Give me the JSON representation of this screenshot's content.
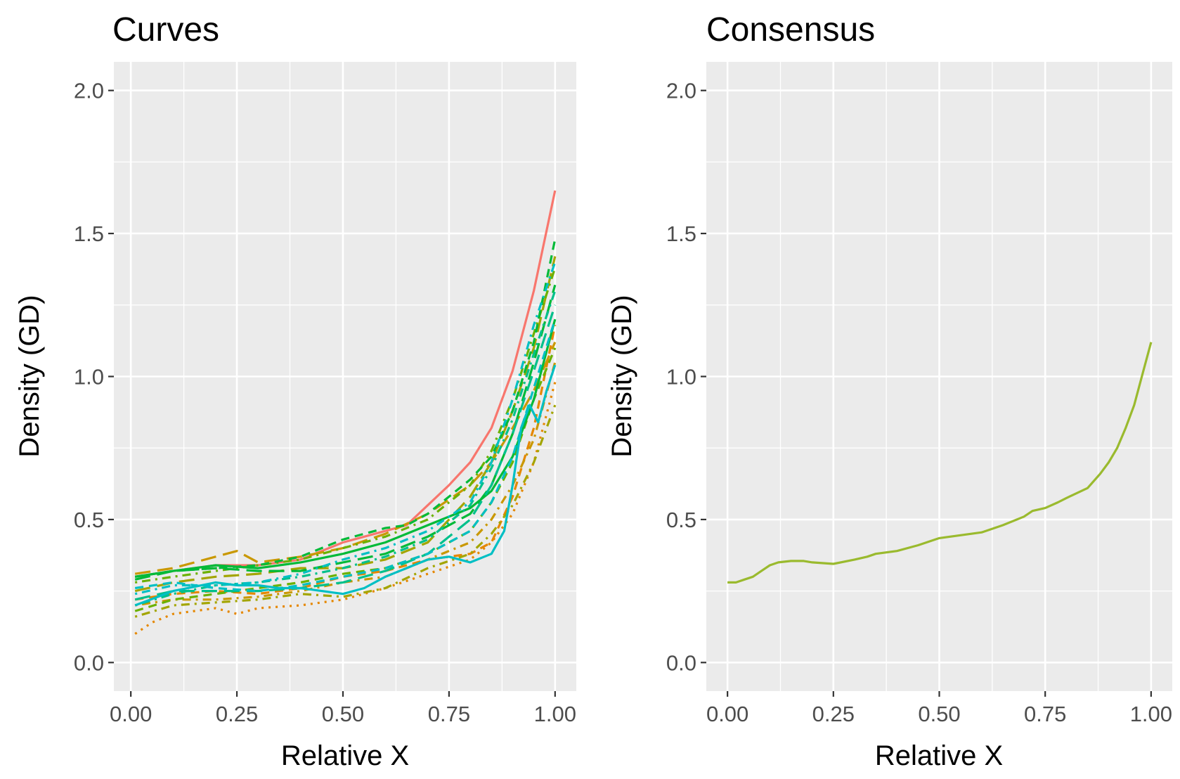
{
  "chart_data": [
    {
      "type": "line",
      "title": "Curves",
      "xlabel": "Relative X",
      "ylabel": "Density (GD)",
      "xlim": [
        -0.04,
        1.05
      ],
      "ylim": [
        -0.1,
        2.1
      ],
      "xticks": [
        0.0,
        0.25,
        0.5,
        0.75,
        1.0
      ],
      "xtick_labels": [
        "0.00",
        "0.25",
        "0.50",
        "0.75",
        "1.00"
      ],
      "yticks": [
        0.0,
        0.5,
        1.0,
        1.5,
        2.0
      ],
      "ytick_labels": [
        "0.0",
        "0.5",
        "1.0",
        "1.5",
        "2.0"
      ],
      "grid": true,
      "legend": "none",
      "colors": [
        "#f8766d",
        "#e58700",
        "#c99800",
        "#a3a500",
        "#6bb100",
        "#00ba38",
        "#00c08b",
        "#00bfc4"
      ],
      "series": [
        {
          "color": "#f8766d",
          "dash": "solid",
          "x": [
            0.01,
            0.1,
            0.2,
            0.3,
            0.4,
            0.5,
            0.6,
            0.65,
            0.7,
            0.75,
            0.8,
            0.85,
            0.9,
            0.95,
            1.0
          ],
          "y": [
            0.3,
            0.32,
            0.34,
            0.34,
            0.36,
            0.42,
            0.46,
            0.48,
            0.55,
            0.62,
            0.7,
            0.82,
            1.02,
            1.3,
            1.65
          ]
        },
        {
          "color": "#e58700",
          "dash": "dot",
          "x": [
            0.01,
            0.05,
            0.1,
            0.2,
            0.25,
            0.3,
            0.4,
            0.5,
            0.6,
            0.7,
            0.8,
            0.85,
            0.9,
            0.95,
            1.0
          ],
          "y": [
            0.1,
            0.14,
            0.17,
            0.19,
            0.17,
            0.19,
            0.2,
            0.22,
            0.26,
            0.31,
            0.36,
            0.42,
            0.52,
            0.7,
            0.98
          ]
        },
        {
          "color": "#e58700",
          "dash": "dash",
          "x": [
            0.01,
            0.1,
            0.2,
            0.3,
            0.4,
            0.5,
            0.6,
            0.7,
            0.8,
            0.85,
            0.9,
            0.95,
            1.0
          ],
          "y": [
            0.22,
            0.24,
            0.25,
            0.24,
            0.26,
            0.3,
            0.32,
            0.36,
            0.38,
            0.42,
            0.58,
            0.82,
            1.18
          ]
        },
        {
          "color": "#c99800",
          "dash": "longdash",
          "x": [
            0.01,
            0.1,
            0.2,
            0.25,
            0.3,
            0.4,
            0.5,
            0.6,
            0.7,
            0.8,
            0.85,
            0.9,
            0.95,
            1.0
          ],
          "y": [
            0.31,
            0.33,
            0.37,
            0.39,
            0.35,
            0.37,
            0.4,
            0.45,
            0.52,
            0.62,
            0.7,
            0.82,
            0.95,
            1.12
          ]
        },
        {
          "color": "#c99800",
          "dash": "dotdash",
          "x": [
            0.01,
            0.1,
            0.2,
            0.3,
            0.4,
            0.5,
            0.6,
            0.7,
            0.8,
            0.85,
            0.9,
            0.95,
            1.0
          ],
          "y": [
            0.2,
            0.22,
            0.22,
            0.23,
            0.25,
            0.28,
            0.3,
            0.36,
            0.42,
            0.5,
            0.62,
            0.78,
            1.05
          ]
        },
        {
          "color": "#a3a500",
          "dash": "dotdash",
          "x": [
            0.01,
            0.1,
            0.2,
            0.3,
            0.4,
            0.5,
            0.6,
            0.7,
            0.8,
            0.85,
            0.9,
            0.95,
            1.0
          ],
          "y": [
            0.16,
            0.2,
            0.21,
            0.22,
            0.24,
            0.23,
            0.26,
            0.33,
            0.38,
            0.45,
            0.55,
            0.7,
            0.9
          ]
        },
        {
          "color": "#a3a500",
          "dash": "longdash",
          "x": [
            0.01,
            0.1,
            0.2,
            0.3,
            0.4,
            0.5,
            0.6,
            0.7,
            0.8,
            0.85,
            0.9,
            0.95,
            1.0
          ],
          "y": [
            0.25,
            0.28,
            0.3,
            0.31,
            0.33,
            0.33,
            0.36,
            0.42,
            0.58,
            0.7,
            0.88,
            1.1,
            1.42
          ]
        },
        {
          "color": "#6bb100",
          "dash": "dash",
          "x": [
            0.01,
            0.1,
            0.2,
            0.3,
            0.4,
            0.5,
            0.6,
            0.7,
            0.8,
            0.85,
            0.9,
            0.95,
            1.0
          ],
          "y": [
            0.18,
            0.22,
            0.24,
            0.26,
            0.28,
            0.31,
            0.33,
            0.38,
            0.46,
            0.56,
            0.7,
            0.92,
            1.1
          ]
        },
        {
          "color": "#6bb100",
          "dash": "dotdash",
          "x": [
            0.01,
            0.1,
            0.2,
            0.3,
            0.4,
            0.5,
            0.6,
            0.7,
            0.8,
            0.85,
            0.9,
            0.95,
            1.0
          ],
          "y": [
            0.28,
            0.3,
            0.32,
            0.34,
            0.36,
            0.4,
            0.44,
            0.5,
            0.62,
            0.74,
            0.92,
            1.15,
            1.38
          ]
        },
        {
          "color": "#00ba38",
          "dash": "dash",
          "x": [
            0.01,
            0.1,
            0.2,
            0.3,
            0.4,
            0.5,
            0.6,
            0.65,
            0.7,
            0.75,
            0.8,
            0.85,
            0.9,
            0.95,
            1.0
          ],
          "y": [
            0.3,
            0.32,
            0.33,
            0.34,
            0.37,
            0.43,
            0.47,
            0.48,
            0.52,
            0.58,
            0.64,
            0.72,
            0.88,
            1.12,
            1.48
          ]
        },
        {
          "color": "#00ba38",
          "dash": "longdash",
          "x": [
            0.01,
            0.1,
            0.2,
            0.3,
            0.4,
            0.5,
            0.6,
            0.7,
            0.8,
            0.85,
            0.9,
            0.95,
            1.0
          ],
          "y": [
            0.29,
            0.32,
            0.33,
            0.32,
            0.32,
            0.35,
            0.38,
            0.44,
            0.52,
            0.62,
            0.8,
            1.05,
            1.32
          ]
        },
        {
          "color": "#00ba38",
          "dash": "solid",
          "x": [
            0.01,
            0.1,
            0.2,
            0.3,
            0.4,
            0.5,
            0.6,
            0.7,
            0.8,
            0.85,
            0.9,
            0.95,
            1.0
          ],
          "y": [
            0.3,
            0.32,
            0.34,
            0.33,
            0.35,
            0.38,
            0.42,
            0.48,
            0.54,
            0.6,
            0.72,
            0.92,
            1.2
          ]
        },
        {
          "color": "#00c08b",
          "dash": "dotdash",
          "x": [
            0.01,
            0.1,
            0.2,
            0.3,
            0.4,
            0.5,
            0.6,
            0.7,
            0.8,
            0.85,
            0.9,
            0.95,
            1.0
          ],
          "y": [
            0.2,
            0.24,
            0.27,
            0.28,
            0.3,
            0.33,
            0.37,
            0.43,
            0.55,
            0.68,
            0.85,
            1.08,
            1.3
          ]
        },
        {
          "color": "#00c08b",
          "dash": "longdash",
          "x": [
            0.01,
            0.1,
            0.2,
            0.3,
            0.4,
            0.5,
            0.6,
            0.7,
            0.8,
            0.85,
            0.9,
            0.95,
            1.0
          ],
          "y": [
            0.22,
            0.25,
            0.25,
            0.25,
            0.26,
            0.28,
            0.32,
            0.38,
            0.5,
            0.62,
            0.8,
            1.02,
            1.25
          ]
        },
        {
          "color": "#00bfc4",
          "dash": "solid",
          "x": [
            0.01,
            0.1,
            0.2,
            0.25,
            0.3,
            0.35,
            0.4,
            0.45,
            0.5,
            0.55,
            0.6,
            0.7,
            0.75,
            0.8,
            0.85,
            0.88,
            0.9,
            0.92,
            0.94,
            0.96,
            0.98,
            1.0
          ],
          "y": [
            0.2,
            0.25,
            0.28,
            0.27,
            0.27,
            0.26,
            0.26,
            0.25,
            0.24,
            0.26,
            0.3,
            0.36,
            0.37,
            0.35,
            0.38,
            0.46,
            0.62,
            0.82,
            0.9,
            0.84,
            0.95,
            1.04
          ]
        },
        {
          "color": "#00bfc4",
          "dash": "dash",
          "x": [
            0.01,
            0.1,
            0.2,
            0.3,
            0.4,
            0.5,
            0.6,
            0.7,
            0.8,
            0.85,
            0.9,
            0.95,
            1.0
          ],
          "y": [
            0.26,
            0.28,
            0.26,
            0.25,
            0.27,
            0.3,
            0.33,
            0.38,
            0.46,
            0.56,
            0.72,
            0.96,
            1.2
          ]
        },
        {
          "color": "#00bfc4",
          "dash": "dotdash",
          "x": [
            0.01,
            0.1,
            0.2,
            0.3,
            0.4,
            0.5,
            0.6,
            0.7,
            0.8,
            0.85,
            0.9,
            0.95,
            1.0
          ],
          "y": [
            0.24,
            0.27,
            0.27,
            0.28,
            0.31,
            0.36,
            0.4,
            0.46,
            0.56,
            0.7,
            0.92,
            1.18,
            1.4
          ]
        }
      ]
    },
    {
      "type": "line",
      "title": "Consensus",
      "xlabel": "Relative X",
      "ylabel": "Density (GD)",
      "xlim": [
        -0.05,
        1.05
      ],
      "ylim": [
        -0.1,
        2.1
      ],
      "xticks": [
        0.0,
        0.25,
        0.5,
        0.75,
        1.0
      ],
      "xtick_labels": [
        "0.00",
        "0.25",
        "0.50",
        "0.75",
        "1.00"
      ],
      "yticks": [
        0.0,
        0.5,
        1.0,
        1.5,
        2.0
      ],
      "ytick_labels": [
        "0.0",
        "0.5",
        "1.0",
        "1.5",
        "2.0"
      ],
      "grid": true,
      "legend": "none",
      "series": [
        {
          "color": "#9aba2e",
          "dash": "solid",
          "x": [
            0.0,
            0.02,
            0.04,
            0.06,
            0.08,
            0.1,
            0.12,
            0.15,
            0.18,
            0.2,
            0.25,
            0.3,
            0.33,
            0.35,
            0.4,
            0.45,
            0.5,
            0.55,
            0.6,
            0.65,
            0.7,
            0.72,
            0.75,
            0.78,
            0.8,
            0.85,
            0.88,
            0.9,
            0.92,
            0.94,
            0.96,
            0.98,
            1.0
          ],
          "y": [
            0.28,
            0.28,
            0.29,
            0.3,
            0.32,
            0.34,
            0.35,
            0.355,
            0.355,
            0.35,
            0.345,
            0.36,
            0.37,
            0.38,
            0.39,
            0.41,
            0.435,
            0.445,
            0.455,
            0.48,
            0.51,
            0.53,
            0.54,
            0.56,
            0.575,
            0.61,
            0.66,
            0.7,
            0.75,
            0.82,
            0.9,
            1.01,
            1.12
          ]
        }
      ]
    }
  ]
}
